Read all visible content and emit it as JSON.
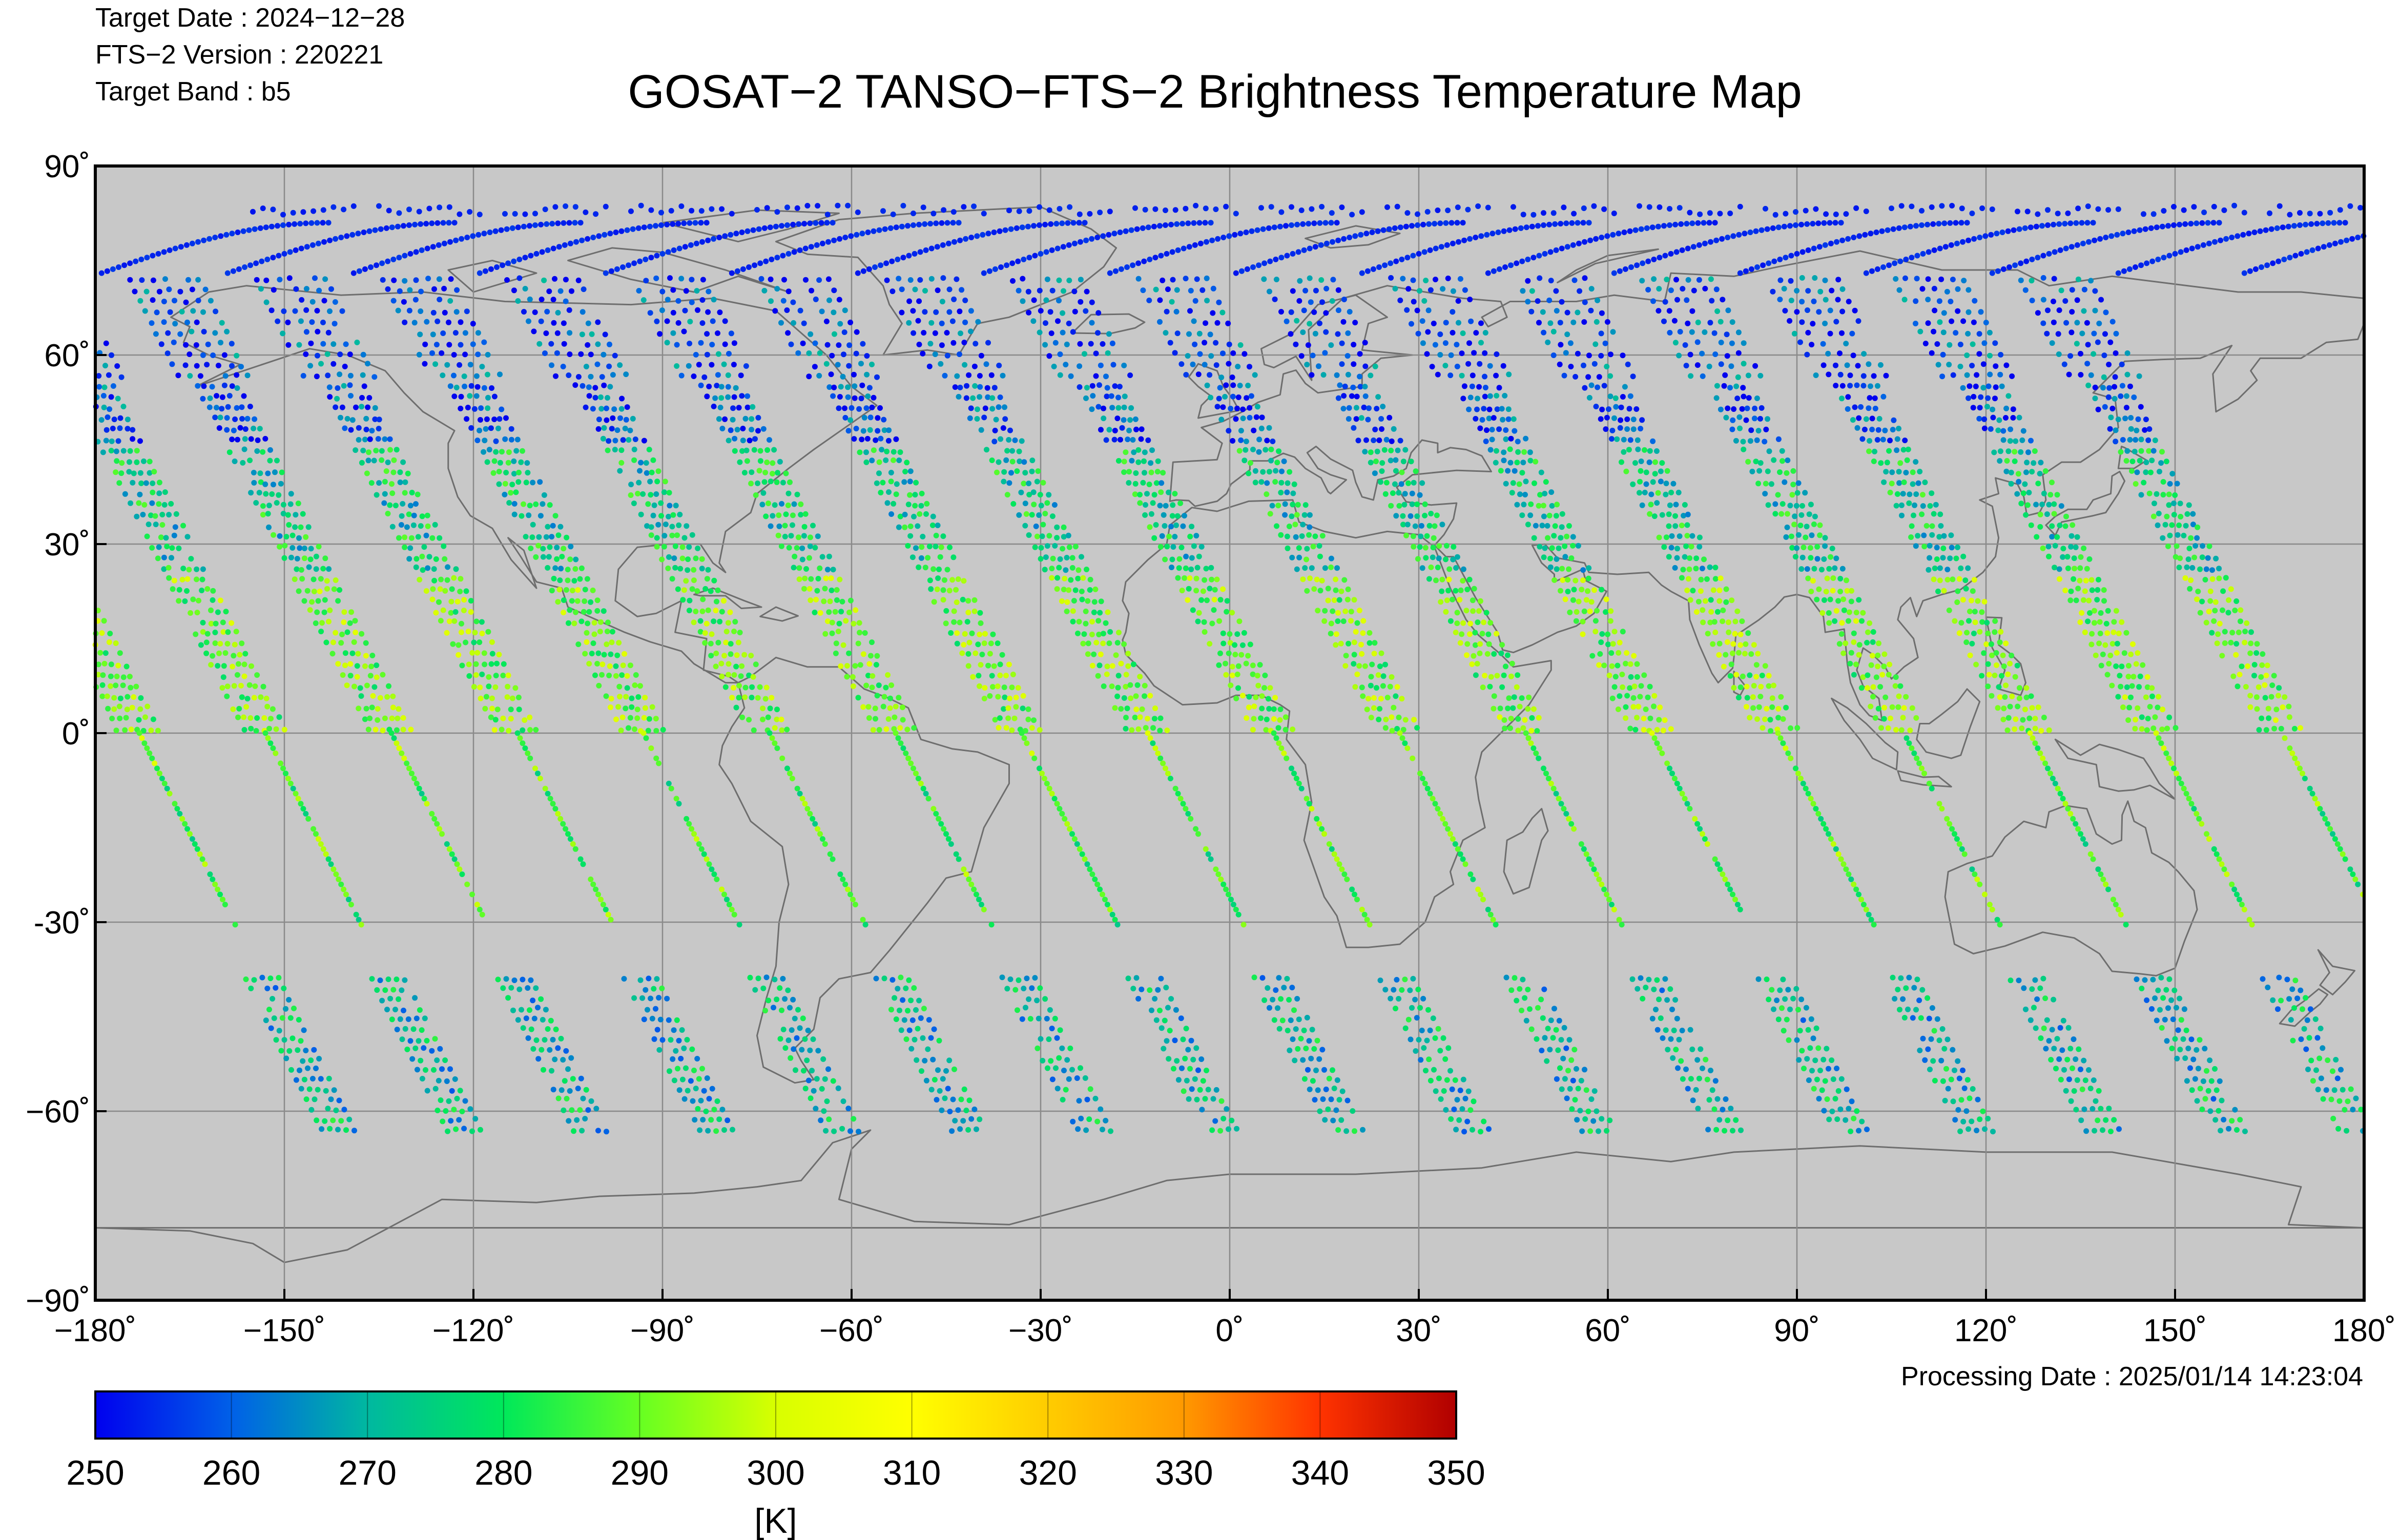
{
  "header": {
    "target_date_line": "Target Date   : 2024−12−28",
    "version_line": "FTS−2 Version : 220221",
    "band_line": "Target Band   : b5"
  },
  "footer": {
    "processing_line": "Processing Date : 2025/01/14 14:23:04"
  },
  "colors": {
    "map_background": "#c8c8c8",
    "coastline": "#6e6e6e",
    "grid": "#8a8a8a",
    "frame": "#000000",
    "colormap": [
      "#0000ee",
      "#0060e8",
      "#00b8a0",
      "#00e85a",
      "#66ff22",
      "#d8ff00",
      "#ffff00",
      "#ffcc00",
      "#ff9900",
      "#ff3300",
      "#b00000"
    ]
  },
  "chart_data": {
    "type": "scatter",
    "title": "GOSAT−2 TANSO−FTS−2 Brightness Temperature Map",
    "projection": "equirectangular",
    "xlabel": "",
    "ylabel": "",
    "xlim": [
      -180,
      180
    ],
    "ylim": [
      -90,
      90
    ],
    "grid": true,
    "x_ticks": [
      -180,
      -150,
      -120,
      -90,
      -60,
      -30,
      0,
      30,
      60,
      90,
      120,
      150,
      180
    ],
    "x_tick_labels": [
      "−180˚",
      "−150˚",
      "−120˚",
      "−90˚",
      "−60˚",
      "−30˚",
      "0˚",
      "30˚",
      "60˚",
      "90˚",
      "120˚",
      "150˚",
      "180˚"
    ],
    "y_ticks": [
      90,
      60,
      30,
      0,
      -30,
      -60,
      -90
    ],
    "y_tick_labels": [
      "90˚",
      "60˚",
      "30˚",
      "0˚",
      "-30˚",
      "−60˚",
      "−90˚"
    ],
    "colorbar": {
      "min": 250,
      "max": 350,
      "ticks": [
        250,
        260,
        270,
        280,
        290,
        300,
        310,
        320,
        330,
        340,
        350
      ],
      "tick_labels": [
        "250",
        "260",
        "270",
        "280",
        "290",
        "300",
        "310",
        "320",
        "330",
        "340",
        "350"
      ],
      "unit": "[K]"
    },
    "swath_lon_at_equator": [
      -173,
      -153,
      -133,
      -113,
      -93,
      -73,
      -53,
      -33,
      -13,
      7,
      27,
      47,
      67,
      87,
      107,
      127,
      147,
      167
    ],
    "swath_tilt_deg_lon_per_deg_lat": -0.5,
    "segments": [
      {
        "lat_range": [
          82,
          84
        ],
        "pattern": "polar-cap-row",
        "typical_K": 252
      },
      {
        "lat_range": [
          65,
          81
        ],
        "pattern": "arc-track",
        "typical_K": 252
      },
      {
        "lat_range": [
          35,
          72
        ],
        "pattern": "wide-grid",
        "typical_K": [
          255,
          285
        ]
      },
      {
        "lat_range": [
          0,
          35
        ],
        "pattern": "wide-grid",
        "typical_K": [
          280,
          300
        ]
      },
      {
        "lat_range": [
          -31,
          0
        ],
        "pattern": "single-track",
        "typical_K": [
          280,
          300
        ]
      },
      {
        "lat_range": [
          -64,
          -39
        ],
        "pattern": "wide-grid",
        "typical_K": [
          255,
          285
        ]
      }
    ]
  }
}
